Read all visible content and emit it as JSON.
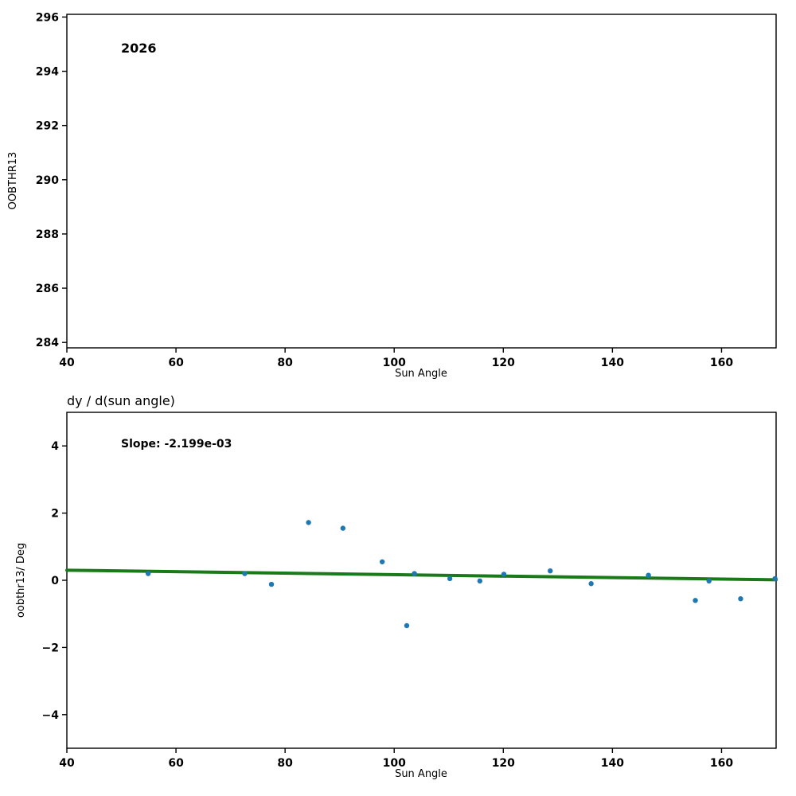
{
  "chart_data": [
    {
      "type": "scatter",
      "title": "",
      "annotation": "2026",
      "xlabel": "Sun Angle",
      "ylabel": "OOBTHR13",
      "xlim": [
        40,
        170
      ],
      "ylim": [
        283.8,
        296.1
      ],
      "xticks": [
        40,
        60,
        80,
        100,
        120,
        140,
        160
      ],
      "yticks": [
        284,
        286,
        288,
        290,
        292,
        294,
        296
      ],
      "grid": false,
      "legend": "none",
      "marker_color": "#1f77b4",
      "points": []
    },
    {
      "type": "scatter",
      "title": "dy / d(sun angle)",
      "annotation": "Slope: -2.199e-03",
      "xlabel": "Sun Angle",
      "ylabel": "oobthr13/ Deg",
      "xlim": [
        40,
        170
      ],
      "ylim": [
        -5,
        5
      ],
      "xticks": [
        40,
        60,
        80,
        100,
        120,
        140,
        160
      ],
      "yticks": [
        -4,
        -2,
        0,
        2,
        4
      ],
      "grid": false,
      "legend": "none",
      "marker_color": "#1f77b4",
      "points": [
        [
          54.9,
          0.2
        ],
        [
          72.6,
          0.2
        ],
        [
          77.5,
          -0.12
        ],
        [
          84.3,
          1.72
        ],
        [
          90.6,
          1.55
        ],
        [
          97.8,
          0.55
        ],
        [
          102.3,
          -1.35
        ],
        [
          103.7,
          0.2
        ],
        [
          110.2,
          0.05
        ],
        [
          115.7,
          -0.02
        ],
        [
          120.1,
          0.18
        ],
        [
          128.6,
          0.28
        ],
        [
          136.1,
          -0.1
        ],
        [
          146.6,
          0.15
        ],
        [
          155.2,
          -0.6
        ],
        [
          157.7,
          -0.02
        ],
        [
          163.5,
          -0.55
        ],
        [
          169.8,
          0.05
        ]
      ],
      "trend_line": {
        "slope": -0.002199,
        "x": [
          40,
          170
        ],
        "y": [
          0.3,
          0.014
        ],
        "color": "#1a7a1a",
        "width": 4
      }
    }
  ]
}
